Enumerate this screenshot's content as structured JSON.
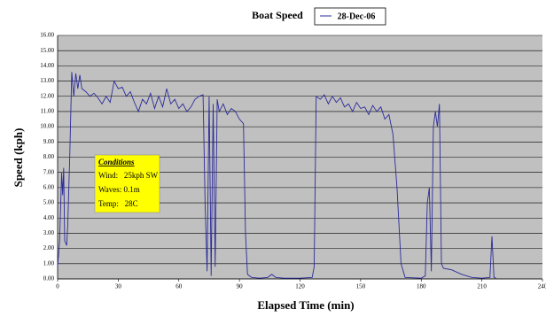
{
  "chart_data": {
    "type": "line",
    "title": "Boat Speed",
    "x_label": "Elapsed Time (min)",
    "y_label": "Speed (kph)",
    "legend": "top",
    "grid": true,
    "background": "#c0c0c0",
    "xlim": [
      0,
      240
    ],
    "xticks": [
      0,
      30,
      60,
      90,
      120,
      150,
      180,
      210,
      240
    ],
    "ylim": [
      0,
      16
    ],
    "yticks": [
      {
        "value": 0,
        "label": "0.00"
      },
      {
        "value": 1,
        "label": "1.00"
      },
      {
        "value": 2,
        "label": "2.00"
      },
      {
        "value": 3,
        "label": "3.00"
      },
      {
        "value": 4,
        "label": "4.00"
      },
      {
        "value": 5,
        "label": "5.00"
      },
      {
        "value": 6,
        "label": "6.00"
      },
      {
        "value": 7,
        "label": "7.00"
      },
      {
        "value": 8,
        "label": "8.00"
      },
      {
        "value": 9,
        "label": "9.00"
      },
      {
        "value": 10,
        "label": "10.00"
      },
      {
        "value": 11,
        "label": "11.00"
      },
      {
        "value": 12,
        "label": "12.00"
      },
      {
        "value": 13,
        "label": "13.00"
      },
      {
        "value": 14,
        "label": "14.00"
      },
      {
        "value": 15,
        "label": "15.00"
      },
      {
        "value": 16,
        "label": "16.00"
      }
    ],
    "annotation": {
      "title": "Conditions",
      "lines": [
        "Wind:   25kph SW",
        "Waves: 0.1m",
        "Temp:   28C"
      ],
      "color": "#ffff00"
    },
    "x": [
      0,
      1,
      2,
      2.5,
      3,
      3.5,
      4.5,
      5,
      6,
      7,
      8,
      9,
      10,
      11,
      12,
      14,
      16,
      18,
      20,
      22,
      24,
      26,
      28,
      30,
      32,
      34,
      36,
      38,
      40,
      42,
      44,
      46,
      48,
      50,
      52,
      54,
      56,
      58,
      60,
      62,
      64,
      66,
      68,
      70,
      72,
      73,
      74,
      75,
      76,
      77,
      78,
      79,
      80,
      82,
      84,
      86,
      88,
      90,
      92,
      93,
      94,
      96,
      100,
      104,
      106,
      108,
      112,
      120,
      126,
      127,
      128,
      130,
      132,
      134,
      136,
      138,
      140,
      142,
      144,
      146,
      148,
      150,
      152,
      154,
      156,
      158,
      160,
      162,
      164,
      166,
      168,
      170,
      172,
      180,
      182,
      183,
      184,
      185,
      186,
      187,
      188,
      189,
      190,
      191,
      195,
      200,
      205,
      210,
      214,
      215,
      216,
      217
    ],
    "series": [
      {
        "name": "28-Dec-06",
        "color": "#2b2b9a",
        "values": [
          0.8,
          2.5,
          7.0,
          5.5,
          7.3,
          2.5,
          2.2,
          3.5,
          8.0,
          13.6,
          12.0,
          13.5,
          12.5,
          13.4,
          12.5,
          12.3,
          12.0,
          12.2,
          11.9,
          11.5,
          12.0,
          11.6,
          13.0,
          12.5,
          12.6,
          12.0,
          12.3,
          11.6,
          11.0,
          11.8,
          11.5,
          12.2,
          11.2,
          12.0,
          11.3,
          12.5,
          11.5,
          11.8,
          11.2,
          11.5,
          11.0,
          11.3,
          11.8,
          12.0,
          12.1,
          5.0,
          0.5,
          12.0,
          0.2,
          11.5,
          0.8,
          11.8,
          11.0,
          11.5,
          10.8,
          11.2,
          11.0,
          10.5,
          10.2,
          3.0,
          0.3,
          0.1,
          0.05,
          0.1,
          0.3,
          0.1,
          0.05,
          0.05,
          0.1,
          0.8,
          12.0,
          11.8,
          12.1,
          11.5,
          12.0,
          11.6,
          11.9,
          11.3,
          11.5,
          11.0,
          11.6,
          11.2,
          11.3,
          10.8,
          11.4,
          11.0,
          11.3,
          10.5,
          10.8,
          9.5,
          6.0,
          1.0,
          0.1,
          0.05,
          0.2,
          5.0,
          6.0,
          0.5,
          10.0,
          11.0,
          10.0,
          11.5,
          1.0,
          0.7,
          0.6,
          0.3,
          0.1,
          0.05,
          0.1,
          2.8,
          0.1,
          0.05
        ]
      }
    ]
  }
}
